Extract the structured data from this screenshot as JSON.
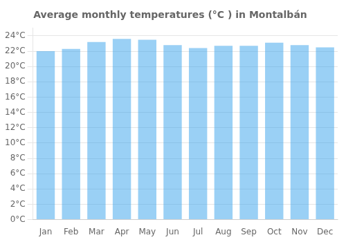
{
  "chart_data": {
    "type": "bar",
    "title": "Average monthly temperatures (°C ) in Montalbán",
    "categories": [
      "Jan",
      "Feb",
      "Mar",
      "Apr",
      "May",
      "Jun",
      "Jul",
      "Aug",
      "Sep",
      "Oct",
      "Nov",
      "Dec"
    ],
    "values": [
      22.0,
      22.3,
      23.2,
      23.6,
      23.5,
      22.8,
      22.4,
      22.7,
      22.7,
      23.1,
      22.8,
      22.5
    ],
    "ylim": [
      0,
      25
    ],
    "yticks": [
      {
        "value": 0,
        "label": "0°C"
      },
      {
        "value": 2,
        "label": "2°C"
      },
      {
        "value": 4,
        "label": "4°C"
      },
      {
        "value": 6,
        "label": "6°C"
      },
      {
        "value": 8,
        "label": "8°C"
      },
      {
        "value": 10,
        "label": "10°C"
      },
      {
        "value": 12,
        "label": "12°C"
      },
      {
        "value": 14,
        "label": "14°C"
      },
      {
        "value": 16,
        "label": "16°C"
      },
      {
        "value": 18,
        "label": "18°C"
      },
      {
        "value": 20,
        "label": "20°C"
      },
      {
        "value": 22,
        "label": "22°C"
      },
      {
        "value": 24,
        "label": "24°C"
      }
    ],
    "grid": true
  }
}
